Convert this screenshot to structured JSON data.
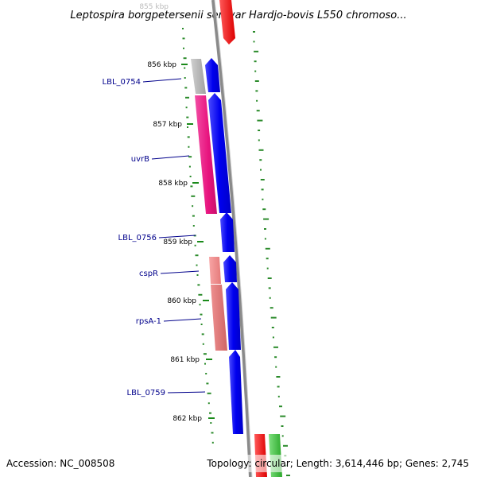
{
  "title": "Leptospira borgpetersenii serovar Hardjo-bovis L550 chromoso...",
  "footer": {
    "accession": "Accession: NC_008508",
    "summary": "Topology: circular; Length: 3,614,446 bp; Genes: 2,745"
  },
  "ruler": {
    "faded_label": "855 kbp",
    "labels": [
      "856 kbp",
      "857 kbp",
      "858 kbp",
      "859 kbp",
      "860 kbp",
      "861 kbp",
      "862 kbp"
    ]
  },
  "genes": [
    {
      "name": "LBL_0754",
      "color": "#b0b0b0"
    },
    {
      "name": "uvrB",
      "color": "#e8157f"
    },
    {
      "name": "LBL_0756",
      "color": "#ffffff"
    },
    {
      "name": "cspR",
      "color": "#f28a8a"
    },
    {
      "name": "rpsA-1",
      "color": "#e07b7b"
    },
    {
      "name": "LBL_0759",
      "color": "#ffffff"
    }
  ],
  "colors": {
    "cds_forward": "#0000ee",
    "backbone": "#8a8a8a",
    "gc_skew_ticks": "#2a8a2a",
    "top_feature": "#ee0000",
    "bottom_feature_red": "#ee0000",
    "bottom_feature_green": "#3cc43c"
  }
}
